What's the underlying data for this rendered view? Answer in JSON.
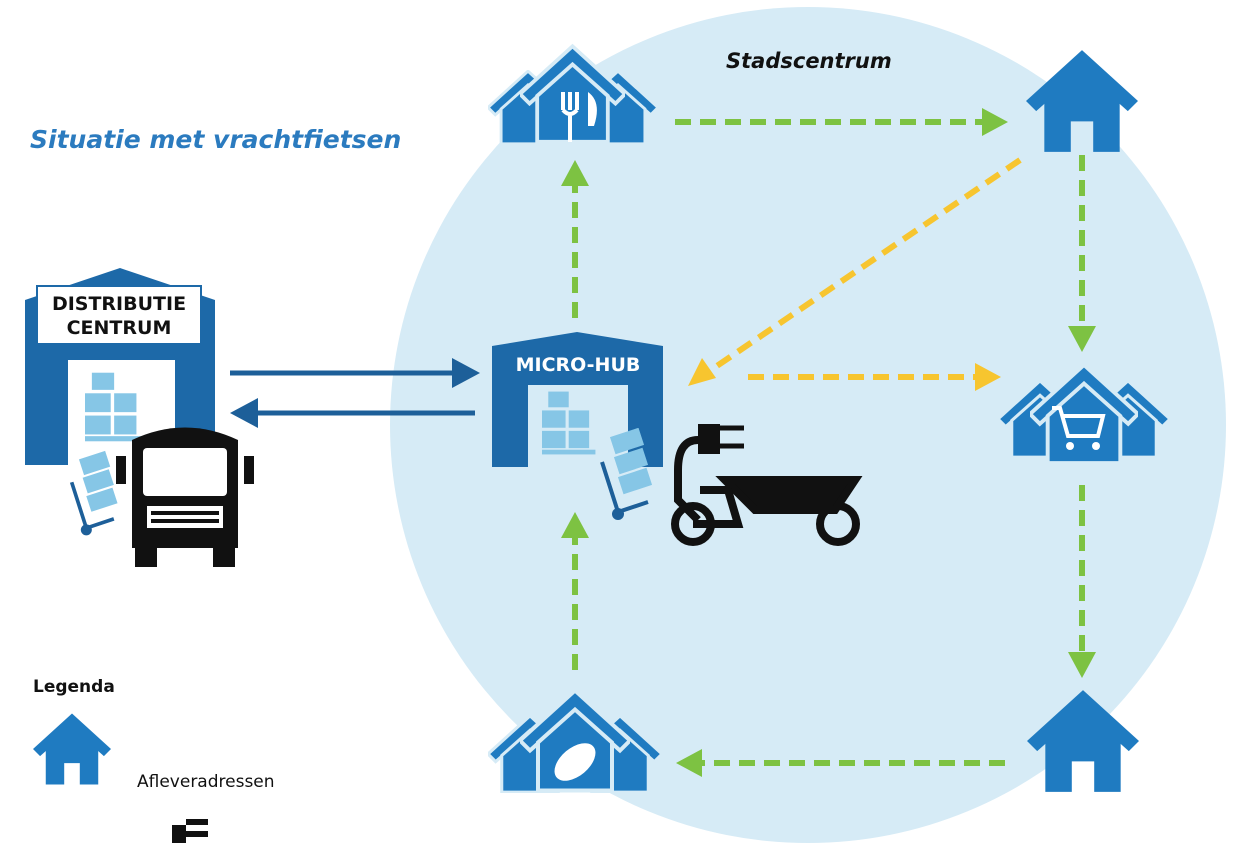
{
  "title": "Situatie met vrachtfietsen",
  "zone": {
    "label": "Stadscentrum"
  },
  "nodes": [
    {
      "label": [
        "DISTRIBUTIE",
        "CENTRUM"
      ]
    },
    {
      "label": "MICRO-HUB"
    }
  ],
  "legend": {
    "title": "Legenda",
    "items": [
      {
        "label": "Afleveradressen"
      }
    ]
  }
}
